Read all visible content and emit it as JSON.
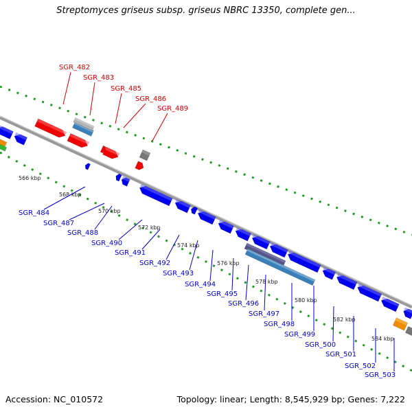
{
  "title": "Streptomyces griseus subsp. griseus NBRC 13350, complete gen...",
  "accession": "Accession: NC_010572",
  "topology": "Topology: linear; Length: 8,545,929 bp; Genes: 7,222",
  "colors": {
    "forward_label": "#cc0000",
    "reverse_label": "#0000cc",
    "forward_gene": "#ee0000",
    "reverse_gene": "#0000ee",
    "tick": "#229922",
    "backbone": "#888888",
    "rna": "#3a7fb8",
    "pseudo": "#777777",
    "other": "#f08c00"
  },
  "ticks": [
    {
      "label": "566 kbp"
    },
    {
      "label": "568 kbp"
    },
    {
      "label": "570 kbp"
    },
    {
      "label": "572 kbp"
    },
    {
      "label": "574 kbp"
    },
    {
      "label": "576 kbp"
    },
    {
      "label": "578 kbp"
    },
    {
      "label": "580 kbp"
    },
    {
      "label": "582 kbp"
    },
    {
      "label": "584 kbp"
    }
  ],
  "forward_labels": [
    "SGR_482",
    "SGR_483",
    "SGR_485",
    "SGR_486",
    "SGR_489"
  ],
  "reverse_labels": [
    "SGR_484",
    "SGR_487",
    "SGR_488",
    "SGR_490",
    "SGR_491",
    "SGR_492",
    "SGR_493",
    "SGR_494",
    "SGR_495",
    "SGR_496",
    "SGR_497",
    "SGR_498",
    "SGR_499",
    "SGR_500",
    "SGR_501",
    "SGR_502",
    "SGR_503"
  ]
}
